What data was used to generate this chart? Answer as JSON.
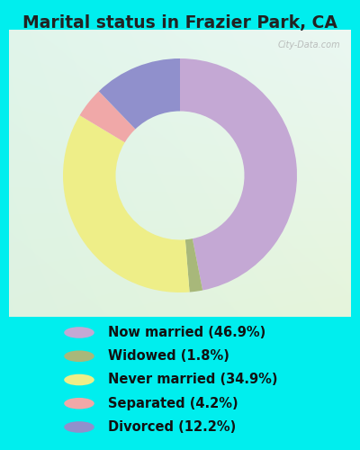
{
  "title": "Marital status in Frazier Park, CA",
  "segments": [
    {
      "label": "Now married (46.9%)",
      "value": 46.9,
      "color": "#C4A8D4"
    },
    {
      "label": "Widowed (1.8%)",
      "value": 1.8,
      "color": "#A8B87A"
    },
    {
      "label": "Never married (34.9%)",
      "value": 34.9,
      "color": "#EEEE88"
    },
    {
      "label": "Separated (4.2%)",
      "value": 4.2,
      "color": "#F0A8A8"
    },
    {
      "label": "Divorced (12.2%)",
      "value": 12.2,
      "color": "#9090CC"
    }
  ],
  "title_fontsize": 13.5,
  "legend_fontsize": 10.5,
  "title_color": "#222222",
  "legend_text_color": "#111111",
  "bg_color": "#00EEEE",
  "chart_bg_tl": [
    0.88,
    0.96,
    0.92
  ],
  "chart_bg_br": [
    0.9,
    0.96,
    0.86
  ],
  "watermark": "City-Data.com",
  "watermark_color": "#aaaaaa",
  "donut_width": 0.45,
  "startangle": 90
}
